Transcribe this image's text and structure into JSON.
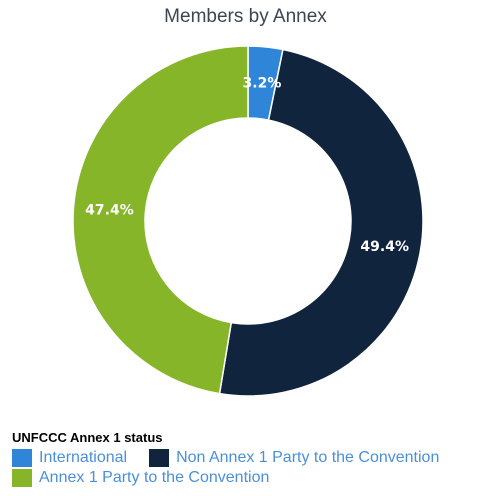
{
  "chart_data": {
    "type": "pie",
    "donut": true,
    "title": "Members by Annex",
    "legend_title": "UNFCCC Annex 1 status",
    "legend_placement": "bottom-left",
    "slices": [
      {
        "label": "International",
        "value": 3.2,
        "display": "3.2%",
        "color": "#2f86d8"
      },
      {
        "label": "Non Annex 1 Party to the Convention",
        "value": 49.4,
        "display": "49.4%",
        "color": "#10243e"
      },
      {
        "label": "Annex 1 Party to the Convention",
        "value": 47.4,
        "display": "47.4%",
        "color": "#86b52a"
      }
    ]
  }
}
